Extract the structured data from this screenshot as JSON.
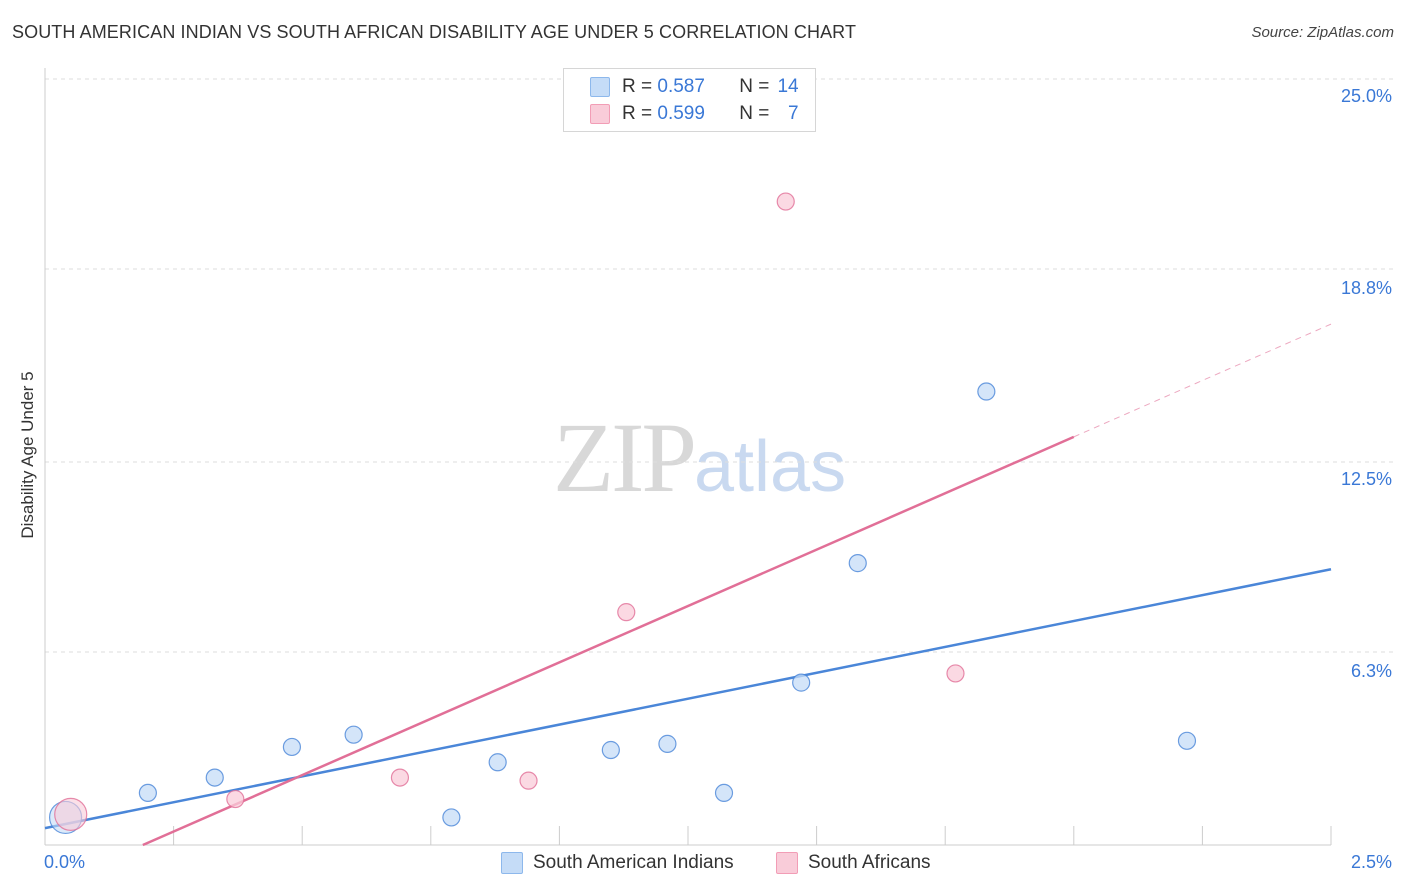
{
  "header": {
    "title": "SOUTH AMERICAN INDIAN VS SOUTH AFRICAN DISABILITY AGE UNDER 5 CORRELATION CHART",
    "source": "Source: ZipAtlas.com"
  },
  "watermark": {
    "zip": "ZIP",
    "atlas": "atlas"
  },
  "legend": {
    "rows": [
      {
        "r_label": "R =",
        "r_value": "0.587",
        "n_label": "N =",
        "n_value": "14",
        "color": "#8db8ec",
        "fill": "#c5dcf7"
      },
      {
        "r_label": "R =",
        "r_value": "0.599",
        "n_label": "N =",
        "n_value": "7",
        "color": "#f29db6",
        "fill": "#f9ccd9"
      }
    ]
  },
  "chart_data": {
    "type": "scatter",
    "title": "SOUTH AMERICAN INDIAN VS SOUTH AFRICAN DISABILITY AGE UNDER 5 CORRELATION CHART",
    "xlabel": "",
    "ylabel": "Disability Age Under 5",
    "xlim": [
      0,
      2.5
    ],
    "ylim": [
      0,
      25
    ],
    "x_tick_labels": [
      "0.0%",
      "2.5%"
    ],
    "y_tick_values": [
      6.3,
      12.5,
      18.8,
      25.0
    ],
    "y_tick_labels": [
      "6.3%",
      "12.5%",
      "18.8%",
      "25.0%"
    ],
    "series": [
      {
        "name": "South American Indians",
        "color": "#4a86d8",
        "fill": "#c5dcf7",
        "points": [
          [
            0.04,
            0.9,
            "big"
          ],
          [
            0.2,
            1.7
          ],
          [
            0.33,
            2.2
          ],
          [
            0.48,
            3.2
          ],
          [
            0.6,
            3.6
          ],
          [
            0.79,
            0.9
          ],
          [
            0.88,
            2.7
          ],
          [
            1.1,
            3.1
          ],
          [
            1.21,
            3.3
          ],
          [
            1.32,
            1.7
          ],
          [
            1.47,
            5.3
          ],
          [
            1.58,
            9.2
          ],
          [
            1.83,
            14.8
          ],
          [
            2.22,
            3.4
          ]
        ],
        "trend": {
          "x0": 0.0,
          "y0": 0.55,
          "x1": 2.5,
          "y1": 9.0
        }
      },
      {
        "name": "South Africans",
        "color": "#e16f97",
        "fill": "#f9ccd9",
        "points": [
          [
            0.05,
            1.0,
            "big"
          ],
          [
            0.37,
            1.5
          ],
          [
            0.69,
            2.2
          ],
          [
            0.94,
            2.1
          ],
          [
            1.13,
            7.6
          ],
          [
            1.44,
            21.0
          ],
          [
            1.77,
            5.6
          ]
        ],
        "trend": {
          "x0": 0.0,
          "y0": -1.4,
          "x1": 2.5,
          "y1": 17.0,
          "solid_until": 2.0
        }
      }
    ]
  }
}
